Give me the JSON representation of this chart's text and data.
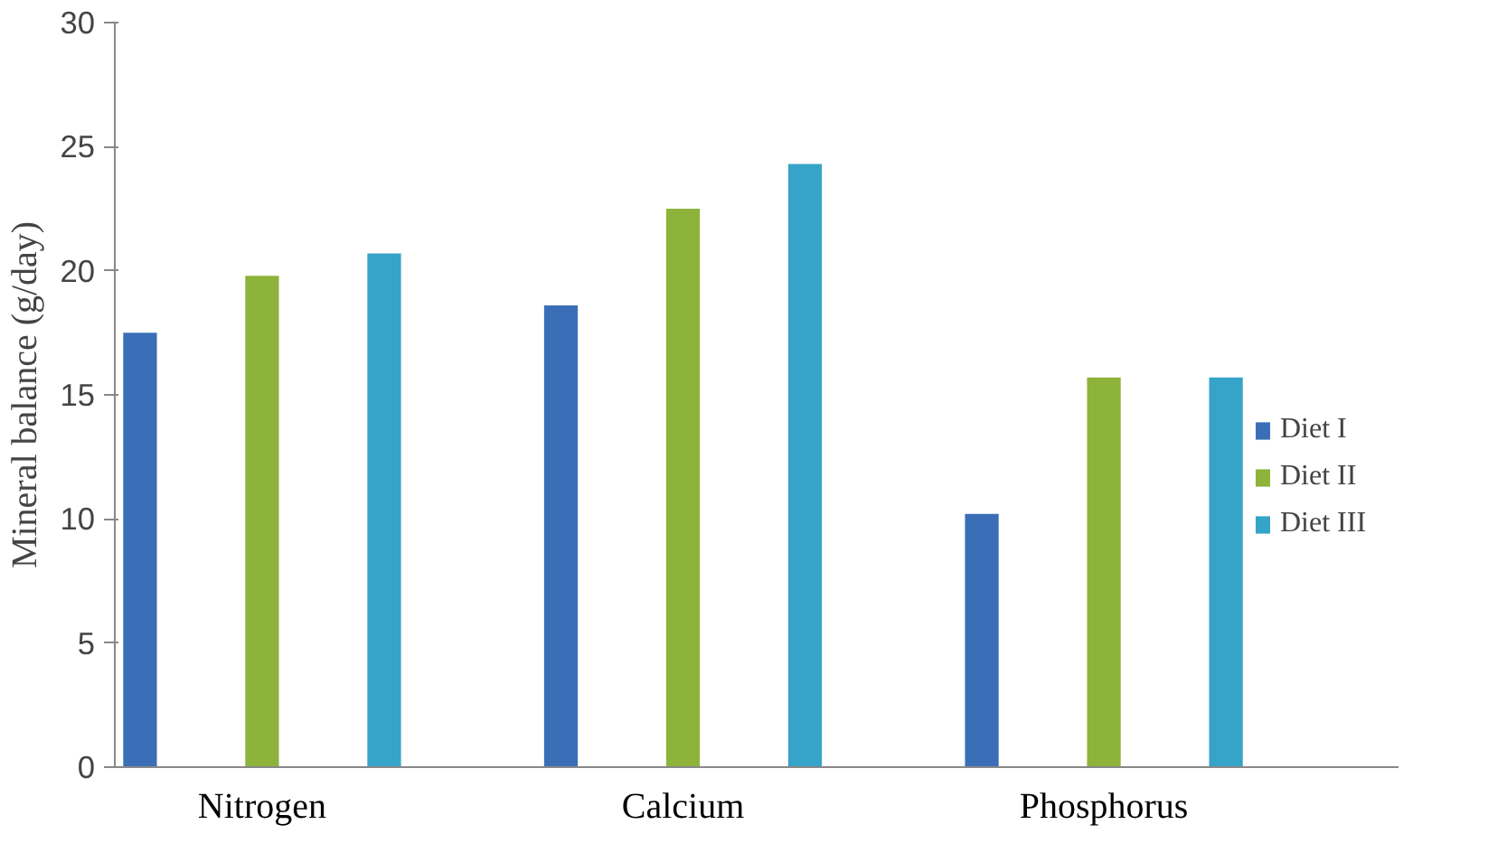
{
  "chart_data": {
    "type": "bar",
    "ylabel": "Mineral balance (g/day)",
    "categories": [
      "Nitrogen",
      "Calcium",
      "Phosphorus"
    ],
    "series": [
      {
        "name": "Diet I",
        "color": "#3a6fb8",
        "values": [
          17.5,
          18.6,
          10.2
        ]
      },
      {
        "name": "Diet II",
        "color": "#8db33a",
        "values": [
          19.8,
          22.5,
          15.7
        ]
      },
      {
        "name": "Diet III",
        "color": "#36a3c8",
        "values": [
          20.7,
          24.3,
          15.7
        ]
      }
    ],
    "ylim": [
      0,
      30
    ],
    "yticks": [
      0,
      5,
      10,
      15,
      20,
      25,
      30
    ],
    "grid": false,
    "legend": "right"
  }
}
